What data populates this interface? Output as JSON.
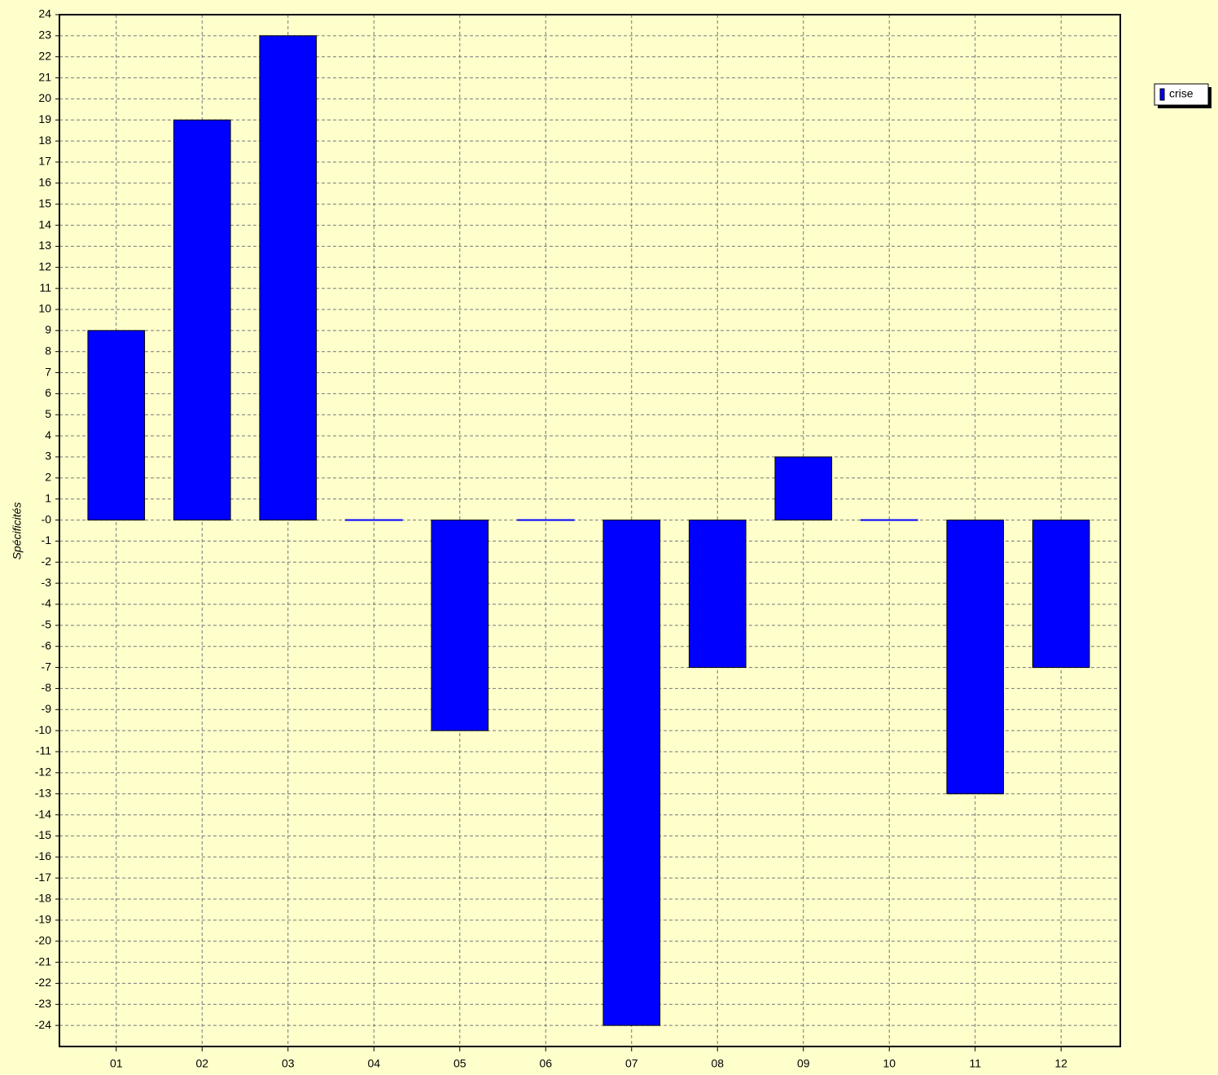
{
  "chart_data": {
    "type": "bar",
    "ylabel": "Spécificités",
    "categories": [
      "01",
      "02",
      "03",
      "04",
      "05",
      "06",
      "07",
      "08",
      "09",
      "10",
      "11",
      "12"
    ],
    "series": [
      {
        "name": "crise",
        "color": "#0000ff",
        "values": [
          9,
          19,
          23,
          0,
          -10,
          0,
          -24,
          -7,
          3,
          0,
          -13,
          -7
        ]
      }
    ],
    "ylim": [
      -25,
      24
    ],
    "yticks": [
      -24,
      -23,
      -22,
      -21,
      -20,
      -19,
      -18,
      -17,
      -16,
      -15,
      -14,
      -13,
      -12,
      -11,
      -10,
      -9,
      -8,
      -7,
      -6,
      -5,
      -4,
      -3,
      -2,
      -1,
      {
        "value": 0,
        "label": "-0"
      },
      1,
      2,
      3,
      4,
      5,
      6,
      7,
      8,
      9,
      10,
      11,
      12,
      13,
      14,
      15,
      16,
      17,
      18,
      19,
      20,
      21,
      22,
      23,
      24
    ],
    "grid": true,
    "legend": "upper right"
  }
}
